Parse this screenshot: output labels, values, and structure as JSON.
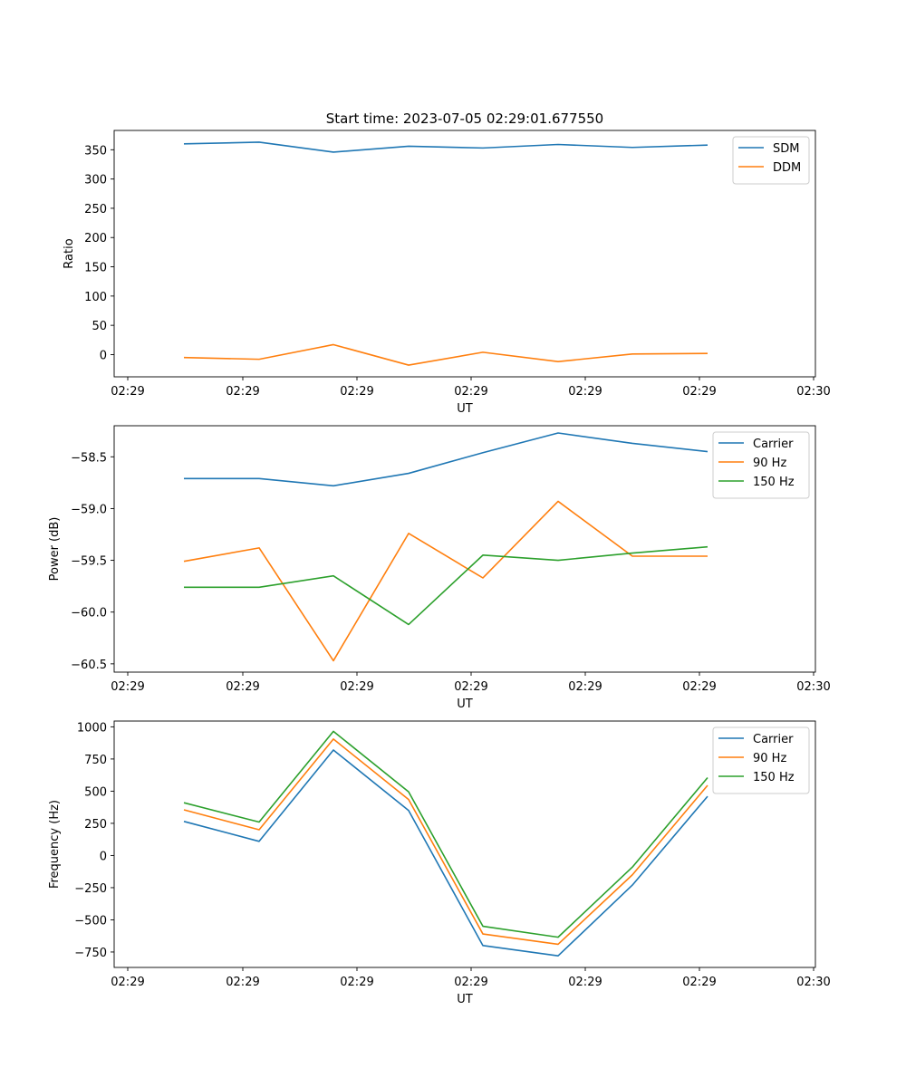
{
  "chart_data": [
    {
      "type": "line",
      "title": "Start time: 2023-07-05 02:29:01.677550",
      "xlabel": "UT",
      "ylabel": "Ratio",
      "x_tick_labels": [
        "02:29",
        "02:29",
        "02:29",
        "02:29",
        "02:29",
        "02:29",
        "02:30"
      ],
      "ylim": [
        -38,
        383
      ],
      "y_ticks": [
        0,
        50,
        100,
        150,
        200,
        250,
        300,
        350
      ],
      "legend": "top-right",
      "series": [
        {
          "name": "SDM",
          "color": "#1f77b4",
          "values": [
            360,
            363,
            346,
            356,
            353,
            359,
            354,
            358
          ]
        },
        {
          "name": "DDM",
          "color": "#ff7f0e",
          "values": [
            -5,
            -8,
            17,
            -18,
            4,
            -12,
            1,
            2
          ]
        }
      ]
    },
    {
      "type": "line",
      "title": "",
      "xlabel": "UT",
      "ylabel": "Power (dB)",
      "x_tick_labels": [
        "02:29",
        "02:29",
        "02:29",
        "02:29",
        "02:29",
        "02:29",
        "02:30"
      ],
      "ylim": [
        -60.58,
        -58.2
      ],
      "y_ticks": [
        -60.5,
        -60.0,
        -59.5,
        -59.0,
        -58.5
      ],
      "y_tick_labels": [
        "−60.5",
        "−60.0",
        "−59.5",
        "−59.0",
        "−58.5"
      ],
      "legend": "top-right",
      "series": [
        {
          "name": "Carrier",
          "color": "#1f77b4",
          "values": [
            -58.71,
            -58.71,
            -58.78,
            -58.66,
            -58.46,
            -58.27,
            -58.37,
            -58.45
          ]
        },
        {
          "name": "90 Hz",
          "color": "#ff7f0e",
          "values": [
            -59.51,
            -59.38,
            -60.47,
            -59.24,
            -59.67,
            -58.93,
            -59.46,
            -59.46
          ]
        },
        {
          "name": "150 Hz",
          "color": "#2ca02c",
          "values": [
            -59.76,
            -59.76,
            -59.65,
            -60.12,
            -59.45,
            -59.5,
            -59.43,
            -59.37
          ]
        }
      ]
    },
    {
      "type": "line",
      "title": "",
      "xlabel": "UT",
      "ylabel": "Frequency (Hz)",
      "x_tick_labels": [
        "02:29",
        "02:29",
        "02:29",
        "02:29",
        "02:29",
        "02:29",
        "02:30"
      ],
      "ylim": [
        -870,
        1045
      ],
      "y_ticks": [
        -750,
        -500,
        -250,
        0,
        250,
        500,
        750,
        1000
      ],
      "y_tick_labels": [
        "−750",
        "−500",
        "−250",
        "0",
        "250",
        "500",
        "750",
        "1000"
      ],
      "legend": "top-right",
      "series": [
        {
          "name": "Carrier",
          "color": "#1f77b4",
          "values": [
            265,
            110,
            820,
            350,
            -700,
            -780,
            -230,
            460
          ]
        },
        {
          "name": "90 Hz",
          "color": "#ff7f0e",
          "values": [
            355,
            200,
            905,
            435,
            -610,
            -690,
            -150,
            545
          ]
        },
        {
          "name": "150 Hz",
          "color": "#2ca02c",
          "values": [
            410,
            260,
            965,
            495,
            -550,
            -635,
            -90,
            605
          ]
        }
      ]
    }
  ]
}
